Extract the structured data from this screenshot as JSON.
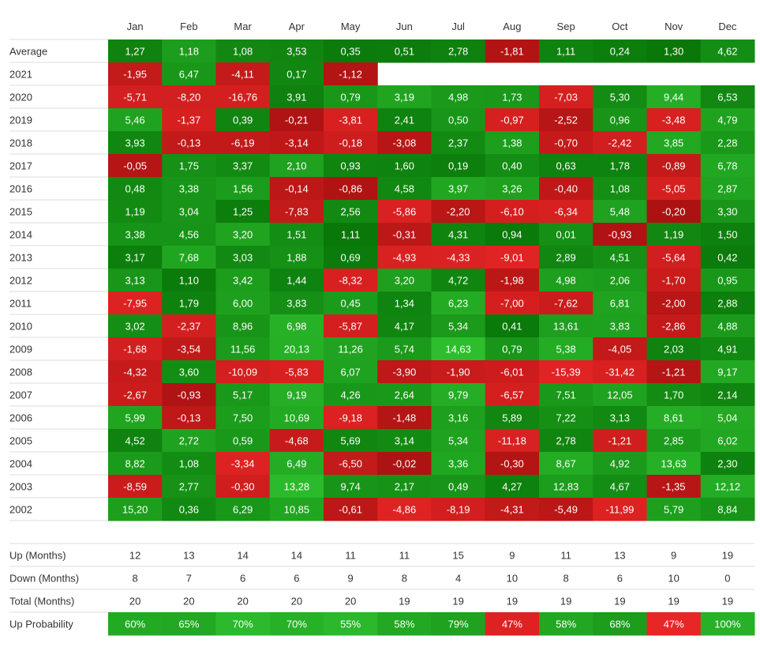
{
  "chart_data": {
    "type": "heatmap",
    "title": "",
    "months": [
      "Jan",
      "Feb",
      "Mar",
      "Apr",
      "May",
      "Jun",
      "Jul",
      "Aug",
      "Sep",
      "Oct",
      "Nov",
      "Dec"
    ],
    "rows": [
      {
        "label": "Average",
        "values": [
          "1,27",
          "1,18",
          "1,08",
          "3,53",
          "0,35",
          "0,51",
          "2,78",
          "-1,81",
          "1,11",
          "0,24",
          "1,30",
          "4,62"
        ]
      },
      {
        "label": "2021",
        "values": [
          "-1,95",
          "6,47",
          "-4,11",
          "0,17",
          "-1,12",
          null,
          null,
          null,
          null,
          null,
          null,
          null
        ]
      },
      {
        "label": "2020",
        "values": [
          "-5,71",
          "-8,20",
          "-16,76",
          "3,91",
          "0,79",
          "3,19",
          "4,98",
          "1,73",
          "-7,03",
          "5,30",
          "9,44",
          "6,53"
        ]
      },
      {
        "label": "2019",
        "values": [
          "5,46",
          "-1,37",
          "0,39",
          "-0,21",
          "-3,81",
          "2,41",
          "0,50",
          "-0,97",
          "-2,52",
          "0,96",
          "-3,48",
          "4,79"
        ]
      },
      {
        "label": "2018",
        "values": [
          "3,93",
          "-0,13",
          "-6,19",
          "-3,14",
          "-0,18",
          "-3,08",
          "2,37",
          "1,38",
          "-0,70",
          "-2,42",
          "3,85",
          "2,28"
        ]
      },
      {
        "label": "2017",
        "values": [
          "-0,05",
          "1,75",
          "3,37",
          "2,10",
          "0,93",
          "1,60",
          "0,19",
          "0,40",
          "0,63",
          "1,78",
          "-0,89",
          "6,78"
        ]
      },
      {
        "label": "2016",
        "values": [
          "0,48",
          "3,38",
          "1,56",
          "-0,14",
          "-0,86",
          "4,58",
          "3,97",
          "3,26",
          "-0,40",
          "1,08",
          "-5,05",
          "2,87"
        ]
      },
      {
        "label": "2015",
        "values": [
          "1,19",
          "3,04",
          "1,25",
          "-7,83",
          "2,56",
          "-5,86",
          "-2,20",
          "-6,10",
          "-6,34",
          "5,48",
          "-0,20",
          "3,30"
        ]
      },
      {
        "label": "2014",
        "values": [
          "3,38",
          "4,56",
          "3,20",
          "1,51",
          "1,11",
          "-0,31",
          "4,31",
          "0,94",
          "0,01",
          "-0,93",
          "1,19",
          "1,50"
        ]
      },
      {
        "label": "2013",
        "values": [
          "3,17",
          "7,68",
          "3,03",
          "1,88",
          "0,69",
          "-4,93",
          "-4,33",
          "-9,01",
          "2,89",
          "4,51",
          "-5,64",
          "0,42"
        ]
      },
      {
        "label": "2012",
        "values": [
          "3,13",
          "1,10",
          "3,42",
          "1,44",
          "-8,32",
          "3,20",
          "4,72",
          "-1,98",
          "4,98",
          "2,06",
          "-1,70",
          "0,95"
        ]
      },
      {
        "label": "2011",
        "values": [
          "-7,95",
          "1,79",
          "6,00",
          "3,83",
          "0,45",
          "1,34",
          "6,23",
          "-7,00",
          "-7,62",
          "6,81",
          "-2,00",
          "2,88"
        ]
      },
      {
        "label": "2010",
        "values": [
          "3,02",
          "-2,37",
          "8,96",
          "6,98",
          "-5,87",
          "4,17",
          "5,34",
          "0,41",
          "13,61",
          "3,83",
          "-2,86",
          "4,88"
        ]
      },
      {
        "label": "2009",
        "values": [
          "-1,68",
          "-3,54",
          "11,56",
          "20,13",
          "11,26",
          "5,74",
          "14,63",
          "0,79",
          "5,38",
          "-4,05",
          "2,03",
          "4,91"
        ]
      },
      {
        "label": "2008",
        "values": [
          "-4,32",
          "3,60",
          "-10,09",
          "-5,83",
          "6,07",
          "-3,90",
          "-1,90",
          "-6,01",
          "-15,39",
          "-31,42",
          "-1,21",
          "9,17"
        ]
      },
      {
        "label": "2007",
        "values": [
          "-2,67",
          "-0,93",
          "5,17",
          "9,19",
          "4,26",
          "2,64",
          "9,79",
          "-6,57",
          "7,51",
          "12,05",
          "1,70",
          "2,14"
        ]
      },
      {
        "label": "2006",
        "values": [
          "5,99",
          "-0,13",
          "7,50",
          "10,69",
          "-9,18",
          "-1,48",
          "3,16",
          "5,89",
          "7,22",
          "3,13",
          "8,61",
          "5,04"
        ]
      },
      {
        "label": "2005",
        "values": [
          "4,52",
          "2,72",
          "0,59",
          "-4,68",
          "5,69",
          "3,14",
          "5,34",
          "-11,18",
          "2,78",
          "-1,21",
          "2,85",
          "6,02"
        ]
      },
      {
        "label": "2004",
        "values": [
          "8,82",
          "1,08",
          "-3,34",
          "6,49",
          "-6,50",
          "-0,02",
          "3,36",
          "-0,30",
          "8,67",
          "4,92",
          "13,63",
          "2,30"
        ]
      },
      {
        "label": "2003",
        "values": [
          "-8,59",
          "2,77",
          "-0,30",
          "13,28",
          "9,74",
          "2,17",
          "0,49",
          "4,27",
          "12,83",
          "4,67",
          "-1,35",
          "12,12"
        ]
      },
      {
        "label": "2002",
        "values": [
          "15,20",
          "0,36",
          "6,29",
          "10,85",
          "-0,61",
          "-4,86",
          "-8,19",
          "-4,31",
          "-5,49",
          "-11,99",
          "5,79",
          "8,84"
        ]
      }
    ],
    "summary": [
      {
        "label": "Up (Months)",
        "values": [
          "12",
          "13",
          "14",
          "14",
          "11",
          "11",
          "15",
          "9",
          "11",
          "13",
          "9",
          "19"
        ]
      },
      {
        "label": "Down (Months)",
        "values": [
          "8",
          "7",
          "6",
          "6",
          "9",
          "8",
          "4",
          "10",
          "8",
          "6",
          "10",
          "0"
        ]
      },
      {
        "label": "Total (Months)",
        "values": [
          "20",
          "20",
          "20",
          "20",
          "20",
          "19",
          "19",
          "19",
          "19",
          "19",
          "19",
          "19"
        ]
      }
    ],
    "probability": {
      "label": "Up Probability",
      "values": [
        "60%",
        "65%",
        "70%",
        "70%",
        "55%",
        "58%",
        "79%",
        "47%",
        "58%",
        "68%",
        "47%",
        "100%"
      ]
    },
    "colors": {
      "positive_light": "#2dbd2d",
      "positive_dark": "#036c03",
      "negative_light": "#f52a2a",
      "negative_dark": "#a30f0f",
      "text_on_cell": "#ffffff",
      "text_label": "#333333",
      "divider": "#dddddd"
    }
  }
}
